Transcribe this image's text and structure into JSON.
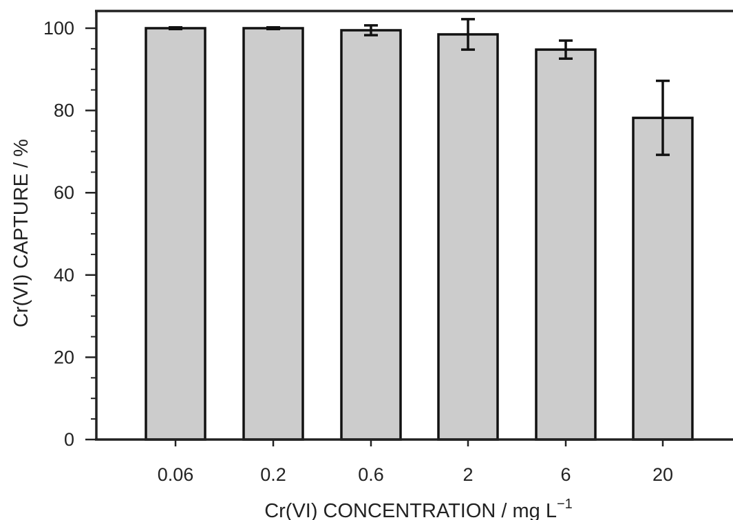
{
  "chart_data": {
    "type": "bar",
    "categories": [
      "0.06",
      "0.2",
      "0.6",
      "2",
      "6",
      "20"
    ],
    "series": [
      {
        "values": [
          100.0,
          100.0,
          99.5,
          98.5,
          94.8,
          78.2
        ],
        "errors": [
          0.2,
          0.2,
          1.2,
          3.7,
          2.2,
          9.0
        ]
      }
    ],
    "xlabel": "Cr(VI) CONCENTRATION / mg L",
    "xlabel_superscript": "−1",
    "ylabel": "Cr(VI) CAPTURE / %",
    "ylim": [
      0,
      100
    ],
    "yticks": [
      0,
      20,
      40,
      60,
      80,
      100
    ],
    "grid": false,
    "legend": "none",
    "colors": {
      "bar_fill": "#cccccc",
      "bar_edge": "#111111",
      "axis": "#222222"
    }
  }
}
